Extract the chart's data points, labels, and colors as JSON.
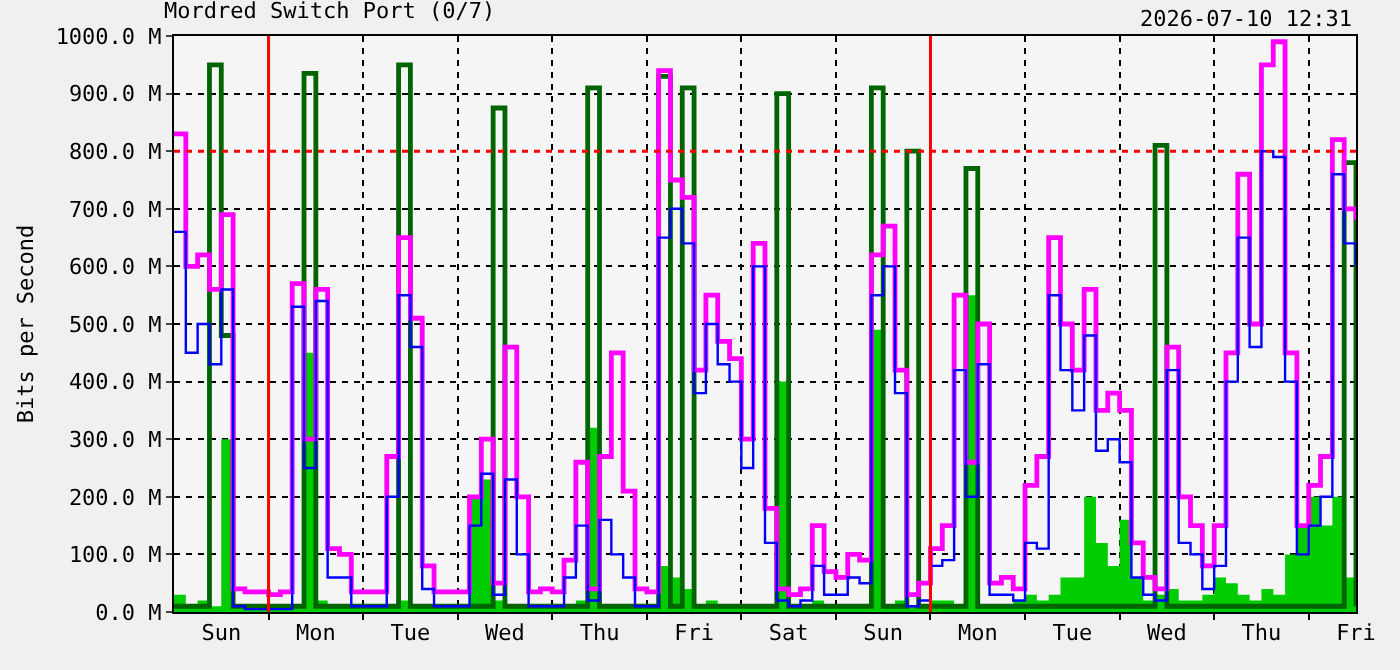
{
  "chart_data": {
    "type": "step",
    "title": "Mordred Switch Port (0/7)",
    "ylabel": "Bits per Second",
    "annotations": [
      "2026-07-10 12:31"
    ],
    "categories": [
      null,
      null,
      null,
      null,
      "Sun",
      null,
      null,
      null,
      null,
      null,
      null,
      null,
      "Mon",
      null,
      null,
      null,
      null,
      null,
      null,
      null,
      "Tue",
      null,
      null,
      null,
      null,
      null,
      null,
      null,
      "Wed",
      null,
      null,
      null,
      null,
      null,
      null,
      null,
      "Thu",
      null,
      null,
      null,
      null,
      null,
      null,
      null,
      "Fri",
      null,
      null,
      null,
      null,
      null,
      null,
      null,
      "Sat",
      null,
      null,
      null,
      null,
      null,
      null,
      null,
      "Sun",
      null,
      null,
      null,
      null,
      null,
      null,
      null,
      "Mon",
      null,
      null,
      null,
      null,
      null,
      null,
      null,
      "Tue",
      null,
      null,
      null,
      null,
      null,
      null,
      null,
      "Wed",
      null,
      null,
      null,
      null,
      null,
      null,
      null,
      "Thu",
      null,
      null,
      null,
      null,
      null,
      null,
      null,
      "Fri"
    ],
    "ylim": [
      0,
      1000
    ],
    "yticks": [
      {
        "value": 0,
        "label": "0.0 M"
      },
      {
        "value": 100,
        "label": "100.0 M"
      },
      {
        "value": 200,
        "label": "200.0 M"
      },
      {
        "value": 300,
        "label": "300.0 M"
      },
      {
        "value": 400,
        "label": "400.0 M"
      },
      {
        "value": 500,
        "label": "500.0 M"
      },
      {
        "value": 600,
        "label": "600.0 M"
      },
      {
        "value": 700,
        "label": "700.0 M"
      },
      {
        "value": 800,
        "label": "800.0 M"
      },
      {
        "value": 900,
        "label": "900.0 M"
      },
      {
        "value": 1000,
        "label": "1000.0 M"
      }
    ],
    "grid": true,
    "marker": "none",
    "line_style": "solid",
    "ref_lines": [
      {
        "axis": "y",
        "value": 800,
        "color": "#ff0000",
        "line_style": "dotted"
      }
    ],
    "series": [
      {
        "type": "area",
        "color": "#00cc00",
        "values": [
          30,
          10,
          20,
          10,
          300,
          10,
          10,
          10,
          10,
          10,
          10,
          450,
          20,
          10,
          10,
          10,
          10,
          10,
          10,
          20,
          10,
          10,
          10,
          10,
          10,
          200,
          230,
          20,
          10,
          10,
          10,
          10,
          10,
          10,
          20,
          320,
          10,
          10,
          10,
          10,
          10,
          80,
          60,
          40,
          10,
          20,
          10,
          10,
          10,
          10,
          10,
          400,
          10,
          10,
          20,
          10,
          10,
          10,
          10,
          490,
          10,
          20,
          10,
          10,
          20,
          20,
          10,
          550,
          10,
          10,
          10,
          20,
          30,
          20,
          30,
          60,
          60,
          200,
          120,
          80,
          160,
          60,
          20,
          30,
          40,
          20,
          20,
          30,
          60,
          50,
          30,
          20,
          40,
          30,
          100,
          150,
          200,
          150,
          200,
          60,
          100
        ]
      },
      {
        "color": "#006400",
        "values": [
          10,
          10,
          10,
          950,
          480,
          10,
          10,
          10,
          10,
          10,
          10,
          935,
          10,
          10,
          10,
          10,
          10,
          10,
          10,
          950,
          10,
          10,
          10,
          10,
          10,
          10,
          10,
          875,
          10,
          10,
          10,
          10,
          10,
          10,
          10,
          910,
          10,
          10,
          10,
          10,
          10,
          930,
          10,
          910,
          10,
          10,
          10,
          10,
          10,
          10,
          10,
          900,
          10,
          10,
          10,
          10,
          10,
          10,
          10,
          910,
          10,
          10,
          800,
          10,
          10,
          10,
          10,
          770,
          10,
          10,
          10,
          10,
          10,
          10,
          10,
          10,
          10,
          10,
          10,
          10,
          10,
          10,
          10,
          810,
          10,
          10,
          10,
          10,
          10,
          10,
          10,
          10,
          10,
          10,
          10,
          10,
          10,
          10,
          10,
          780,
          10
        ]
      },
      {
        "color": "#ff00ff",
        "values": [
          830,
          600,
          620,
          560,
          690,
          40,
          35,
          35,
          30,
          35,
          570,
          300,
          560,
          110,
          100,
          35,
          35,
          35,
          270,
          650,
          510,
          80,
          35,
          35,
          35,
          200,
          300,
          50,
          460,
          200,
          35,
          40,
          35,
          90,
          260,
          40,
          270,
          450,
          210,
          40,
          35,
          940,
          750,
          720,
          420,
          550,
          470,
          440,
          300,
          640,
          180,
          40,
          30,
          40,
          150,
          70,
          60,
          100,
          90,
          620,
          670,
          420,
          30,
          50,
          110,
          150,
          550,
          260,
          500,
          50,
          60,
          40,
          220,
          270,
          650,
          500,
          420,
          560,
          350,
          380,
          350,
          120,
          60,
          40,
          460,
          200,
          150,
          80,
          150,
          450,
          760,
          500,
          950,
          990,
          450,
          150,
          220,
          270,
          820,
          700,
          680
        ]
      },
      {
        "color": "#0000ff",
        "values": [
          660,
          450,
          500,
          430,
          560,
          10,
          5,
          5,
          5,
          5,
          530,
          250,
          540,
          60,
          60,
          10,
          10,
          10,
          200,
          550,
          460,
          40,
          10,
          10,
          10,
          150,
          240,
          30,
          230,
          100,
          10,
          10,
          10,
          60,
          150,
          20,
          160,
          100,
          60,
          10,
          10,
          650,
          700,
          640,
          380,
          500,
          430,
          400,
          250,
          600,
          120,
          20,
          10,
          20,
          80,
          30,
          30,
          60,
          50,
          550,
          600,
          380,
          10,
          20,
          80,
          90,
          420,
          200,
          430,
          30,
          30,
          20,
          120,
          110,
          550,
          420,
          350,
          480,
          280,
          300,
          260,
          60,
          30,
          20,
          420,
          120,
          100,
          40,
          80,
          400,
          650,
          460,
          800,
          790,
          400,
          100,
          150,
          200,
          760,
          640,
          600
        ]
      }
    ]
  }
}
